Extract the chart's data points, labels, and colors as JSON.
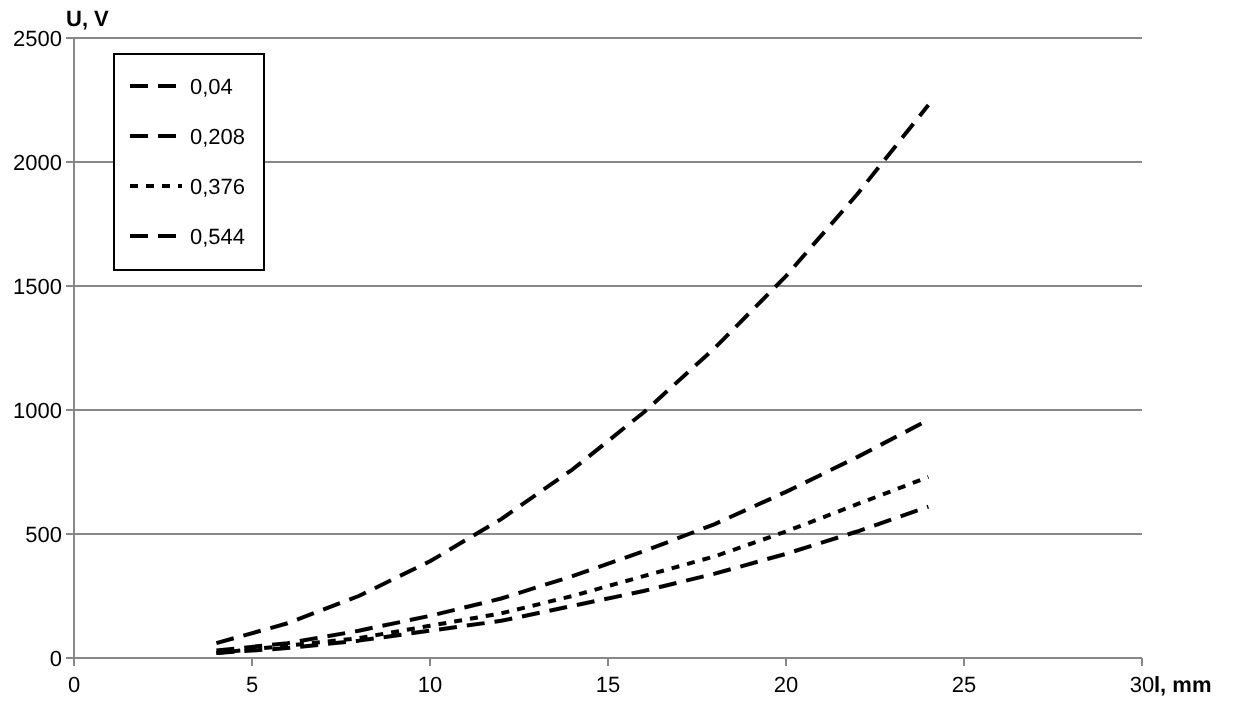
{
  "chart_data": {
    "type": "line",
    "xlabel": "l, mm",
    "ylabel": "U, V",
    "x": [
      4,
      6,
      8,
      10,
      12,
      14,
      16,
      18,
      20,
      22,
      24
    ],
    "series": [
      {
        "name": "0,04",
        "color": "#000000",
        "line_style": "dashed",
        "values": [
          60,
          140,
          250,
          390,
          560,
          760,
          990,
          1250,
          1540,
          1870,
          2230
        ]
      },
      {
        "name": "0,208",
        "color": "#000000",
        "line_style": "dashed",
        "values": [
          30,
          60,
          110,
          170,
          240,
          330,
          430,
          540,
          670,
          810,
          960
        ]
      },
      {
        "name": "0,376",
        "color": "#000000",
        "line_style": "dotted",
        "values": [
          20,
          50,
          80,
          130,
          180,
          250,
          330,
          410,
          510,
          620,
          730
        ]
      },
      {
        "name": "0,544",
        "color": "#000000",
        "line_style": "dashed",
        "values": [
          20,
          40,
          70,
          110,
          150,
          210,
          270,
          340,
          420,
          510,
          610
        ]
      }
    ],
    "xlim": [
      0,
      30
    ],
    "xticks": [
      0,
      5,
      10,
      15,
      20,
      25,
      30
    ],
    "ylim": [
      0,
      2500
    ],
    "yticks": [
      0,
      500,
      1000,
      1500,
      2000,
      2500
    ],
    "grid": "y",
    "legend": "top left",
    "marker": "none"
  }
}
